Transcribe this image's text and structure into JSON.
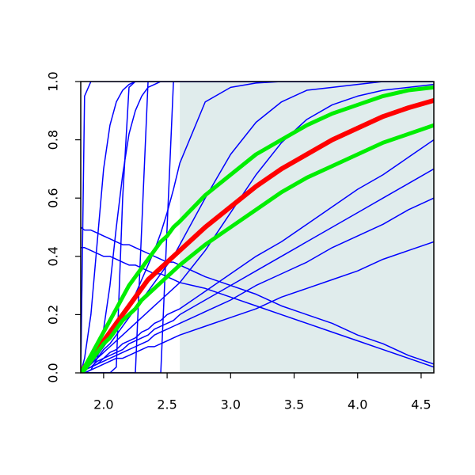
{
  "chart_data": {
    "type": "line",
    "x": [
      1.82,
      1.85,
      1.9,
      1.95,
      2.0,
      2.05,
      2.1,
      2.15,
      2.2,
      2.25,
      2.3,
      2.35,
      2.4,
      2.45,
      2.5,
      2.55,
      2.6,
      2.8,
      3.0,
      3.2,
      3.4,
      3.6,
      3.8,
      4.0,
      4.2,
      4.4,
      4.6
    ],
    "xlim": [
      1.82,
      4.6
    ],
    "ylim": [
      0,
      1
    ],
    "xticks": [
      {
        "value": 2,
        "label": "2.0"
      },
      2.5,
      {
        "value": 3,
        "label": "3.0"
      },
      3.5,
      {
        "value": 4,
        "label": "4.0"
      },
      4.5
    ],
    "yticks": [
      {
        "value": 0,
        "label": "0.0"
      },
      0.2,
      0.4,
      0.6,
      0.8,
      {
        "value": 1,
        "label": "1.0"
      }
    ],
    "shaded_region": {
      "x": [
        2.6,
        4.6
      ],
      "color": "#e0ecec"
    },
    "series": [
      {
        "color": "#0000ff",
        "line_width": 1.5,
        "values": [
          0,
          0.95,
          1,
          1,
          1,
          1,
          1,
          1,
          1,
          1,
          1,
          1,
          1,
          1,
          1,
          1,
          1,
          1,
          1,
          1,
          1,
          1,
          1,
          1,
          1,
          1,
          1
        ]
      },
      {
        "color": "#0000ff",
        "line_width": 1.5,
        "values": [
          0,
          0,
          0,
          0,
          0,
          0,
          0.02,
          0.6,
          0.98,
          1,
          1,
          1,
          1,
          1,
          1,
          1,
          1,
          1,
          1,
          1,
          1,
          1,
          1,
          1,
          1,
          1,
          1
        ]
      },
      {
        "color": "#0000ff",
        "line_width": 1.5,
        "values": [
          0,
          0,
          0,
          0,
          0,
          0,
          0,
          0,
          0,
          0,
          0.5,
          1,
          1,
          1,
          1,
          1,
          1,
          1,
          1,
          1,
          1,
          1,
          1,
          1,
          1,
          1,
          1
        ]
      },
      {
        "color": "#0000ff",
        "line_width": 1.5,
        "values": [
          0,
          0,
          0,
          0,
          0,
          0,
          0,
          0,
          0,
          0,
          0,
          0,
          0,
          0,
          0.5,
          1,
          1,
          1,
          1,
          1,
          1,
          1,
          1,
          1,
          1,
          1,
          1
        ]
      },
      {
        "color": "#0000ff",
        "line_width": 1.5,
        "values": [
          0,
          0.05,
          0.2,
          0.45,
          0.7,
          0.85,
          0.93,
          0.97,
          0.99,
          1,
          1,
          1,
          1,
          1,
          1,
          1,
          1,
          1,
          1,
          1,
          1,
          1,
          1,
          1,
          1,
          1,
          1
        ]
      },
      {
        "color": "#0000ff",
        "line_width": 1.5,
        "values": [
          0,
          0,
          0.01,
          0.05,
          0.15,
          0.3,
          0.5,
          0.68,
          0.82,
          0.9,
          0.95,
          0.98,
          0.99,
          1,
          1,
          1,
          1,
          1,
          1,
          1,
          1,
          1,
          1,
          1,
          1,
          1,
          1
        ]
      },
      {
        "color": "#0000ff",
        "line_width": 1.5,
        "values": [
          0,
          0.01,
          0.03,
          0.06,
          0.09,
          0.12,
          0.15,
          0.19,
          0.23,
          0.27,
          0.32,
          0.37,
          0.42,
          0.48,
          0.55,
          0.63,
          0.72,
          0.93,
          0.98,
          0.995,
          1,
          1,
          1,
          1,
          1,
          1,
          1
        ]
      },
      {
        "color": "#0000ff",
        "line_width": 1.5,
        "values": [
          0,
          0.01,
          0.03,
          0.05,
          0.08,
          0.1,
          0.13,
          0.16,
          0.19,
          0.22,
          0.25,
          0.28,
          0.31,
          0.34,
          0.37,
          0.4,
          0.44,
          0.6,
          0.75,
          0.86,
          0.93,
          0.97,
          0.98,
          0.99,
          1,
          1,
          1
        ]
      },
      {
        "color": "#0000ff",
        "line_width": 1.5,
        "values": [
          0,
          0.01,
          0.03,
          0.05,
          0.07,
          0.09,
          0.11,
          0.13,
          0.15,
          0.17,
          0.19,
          0.21,
          0.23,
          0.25,
          0.27,
          0.29,
          0.31,
          0.42,
          0.55,
          0.68,
          0.79,
          0.87,
          0.92,
          0.95,
          0.97,
          0.98,
          0.99
        ]
      },
      {
        "color": "#0000ff",
        "line_width": 1.5,
        "values": [
          0,
          0,
          0.01,
          0.02,
          0.03,
          0.04,
          0.05,
          0.05,
          0.06,
          0.07,
          0.08,
          0.09,
          0.09,
          0.1,
          0.11,
          0.12,
          0.13,
          0.16,
          0.19,
          0.22,
          0.26,
          0.29,
          0.32,
          0.35,
          0.39,
          0.42,
          0.45
        ]
      },
      {
        "color": "#0000ff",
        "line_width": 1.5,
        "values": [
          0,
          0.01,
          0.02,
          0.03,
          0.04,
          0.05,
          0.06,
          0.07,
          0.08,
          0.09,
          0.1,
          0.11,
          0.13,
          0.14,
          0.15,
          0.16,
          0.17,
          0.21,
          0.25,
          0.3,
          0.34,
          0.38,
          0.43,
          0.47,
          0.51,
          0.56,
          0.6
        ]
      },
      {
        "color": "#0000ff",
        "line_width": 1.5,
        "values": [
          0,
          0.01,
          0.02,
          0.03,
          0.05,
          0.06,
          0.07,
          0.08,
          0.1,
          0.11,
          0.12,
          0.13,
          0.15,
          0.16,
          0.17,
          0.18,
          0.2,
          0.25,
          0.3,
          0.35,
          0.4,
          0.45,
          0.5,
          0.55,
          0.6,
          0.65,
          0.7
        ]
      },
      {
        "color": "#0000ff",
        "line_width": 1.5,
        "values": [
          0,
          0.01,
          0.02,
          0.04,
          0.05,
          0.07,
          0.08,
          0.1,
          0.11,
          0.12,
          0.14,
          0.15,
          0.17,
          0.18,
          0.2,
          0.21,
          0.22,
          0.28,
          0.34,
          0.4,
          0.45,
          0.51,
          0.57,
          0.63,
          0.68,
          0.74,
          0.8
        ]
      },
      {
        "color": "#0000ff",
        "line_width": 1.5,
        "values": [
          0.5,
          0.49,
          0.49,
          0.48,
          0.47,
          0.46,
          0.45,
          0.44,
          0.44,
          0.43,
          0.42,
          0.41,
          0.4,
          0.39,
          0.38,
          0.38,
          0.37,
          0.33,
          0.3,
          0.27,
          0.23,
          0.2,
          0.17,
          0.13,
          0.1,
          0.06,
          0.03
        ]
      },
      {
        "color": "#0000ff",
        "line_width": 1.5,
        "values": [
          0.43,
          0.43,
          0.42,
          0.41,
          0.4,
          0.4,
          0.39,
          0.38,
          0.37,
          0.37,
          0.36,
          0.35,
          0.34,
          0.34,
          0.33,
          0.32,
          0.31,
          0.29,
          0.26,
          0.23,
          0.2,
          0.17,
          0.14,
          0.11,
          0.08,
          0.05,
          0.02
        ]
      },
      {
        "color": "#ff0000",
        "line_width": 6,
        "values": [
          0,
          0.02,
          0.05,
          0.08,
          0.11,
          0.14,
          0.17,
          0.2,
          0.23,
          0.26,
          0.29,
          0.32,
          0.34,
          0.36,
          0.38,
          0.4,
          0.42,
          0.5,
          0.57,
          0.64,
          0.7,
          0.75,
          0.8,
          0.84,
          0.88,
          0.91,
          0.935
        ]
      },
      {
        "color": "#00ee00",
        "line_width": 5,
        "values": [
          0,
          0.02,
          0.06,
          0.1,
          0.14,
          0.18,
          0.22,
          0.26,
          0.3,
          0.33,
          0.36,
          0.39,
          0.42,
          0.45,
          0.47,
          0.5,
          0.52,
          0.61,
          0.68,
          0.75,
          0.8,
          0.85,
          0.89,
          0.92,
          0.95,
          0.97,
          0.98
        ]
      },
      {
        "color": "#00ee00",
        "line_width": 5,
        "values": [
          0,
          0.01,
          0.04,
          0.07,
          0.1,
          0.12,
          0.15,
          0.18,
          0.2,
          0.22,
          0.25,
          0.27,
          0.29,
          0.31,
          0.33,
          0.35,
          0.37,
          0.44,
          0.5,
          0.56,
          0.62,
          0.67,
          0.71,
          0.75,
          0.79,
          0.82,
          0.85
        ]
      }
    ]
  }
}
